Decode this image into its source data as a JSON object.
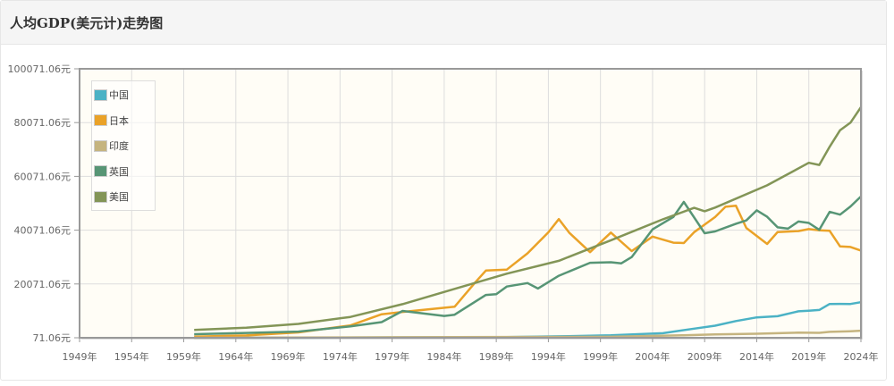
{
  "header": {
    "title": "人均GDP(美元计)走势图"
  },
  "chart_data": {
    "type": "line",
    "title": "人均GDP(美元计)走势图",
    "xlabel": "",
    "ylabel": "",
    "xlim": [
      1949,
      2024
    ],
    "ylim": [
      71.06,
      100071.06
    ],
    "x_ticks": [
      "1949年",
      "1954年",
      "1959年",
      "1964年",
      "1969年",
      "1974年",
      "1979年",
      "1984年",
      "1989年",
      "1994年",
      "1999年",
      "2004年",
      "2009年",
      "2014年",
      "2019年",
      "2024年"
    ],
    "y_ticks": [
      "71.06元",
      "20071.06元",
      "40071.06元",
      "60071.06元",
      "80071.06元",
      "100071.06元"
    ],
    "grid": true,
    "legend_position": "top-left",
    "series": [
      {
        "name": "中国",
        "color": "#4bb2c5",
        "x": [
          1960,
          1970,
          1980,
          1990,
          1995,
          2000,
          2005,
          2008,
          2010,
          2012,
          2014,
          2016,
          2018,
          2019,
          2020,
          2021,
          2022,
          2023,
          2024
        ],
        "values": [
          90,
          113,
          195,
          318,
          610,
          959,
          1753,
          3468,
          4550,
          6300,
          7636,
          8094,
          9905,
          10143,
          10409,
          12617,
          12663,
          12614,
          13300
        ]
      },
      {
        "name": "日本",
        "color": "#eaa228",
        "x": [
          1960,
          1965,
          1970,
          1975,
          1978,
          1980,
          1985,
          1987,
          1988,
          1990,
          1992,
          1994,
          1995,
          1996,
          1998,
          2000,
          2002,
          2004,
          2006,
          2007,
          2008,
          2010,
          2011,
          2012,
          2013,
          2015,
          2016,
          2018,
          2019,
          2020,
          2021,
          2022,
          2023,
          2024
        ],
        "values": [
          480,
          920,
          2056,
          4659,
          8821,
          9659,
          11585,
          20749,
          25051,
          25371,
          31465,
          39269,
          44198,
          39150,
          31902,
          39169,
          32281,
          37689,
          35434,
          35275,
          39339,
          44968,
          48760,
          49145,
          40898,
          34961,
          39375,
          39727,
          40458,
          40041,
          39827,
          34017,
          33834,
          32500
        ]
      },
      {
        "name": "印度",
        "color": "#c5b47f",
        "x": [
          1960,
          1980,
          1990,
          2000,
          2007,
          2010,
          2014,
          2018,
          2020,
          2021,
          2023,
          2024
        ],
        "values": [
          83,
          270,
          368,
          443,
          1000,
          1350,
          1560,
          1974,
          1913,
          2250,
          2480,
          2700
        ]
      },
      {
        "name": "英国",
        "color": "#579575",
        "x": [
          1960,
          1965,
          1970,
          1975,
          1978,
          1980,
          1984,
          1985,
          1988,
          1989,
          1990,
          1992,
          1993,
          1995,
          1998,
          2000,
          2001,
          2002,
          2004,
          2006,
          2007,
          2009,
          2010,
          2012,
          2013,
          2014,
          2015,
          2016,
          2017,
          2018,
          2019,
          2020,
          2021,
          2022,
          2023,
          2024
        ],
        "values": [
          1398,
          1874,
          2348,
          4300,
          5900,
          10032,
          8179,
          8652,
          15987,
          16239,
          19095,
          20400,
          18389,
          23123,
          27934,
          28150,
          27744,
          30057,
          40380,
          45000,
          50566,
          38952,
          39599,
          42463,
          43700,
          47440,
          45071,
          41147,
          40622,
          43306,
          42747,
          40217,
          46870,
          45850,
          48867,
          52600
        ]
      },
      {
        "name": "美国",
        "color": "#839557",
        "x": [
          1960,
          1965,
          1970,
          1975,
          1980,
          1985,
          1990,
          1995,
          2000,
          2005,
          2008,
          2009,
          2010,
          2015,
          2019,
          2020,
          2021,
          2022,
          2023,
          2024
        ],
        "values": [
          3007,
          3828,
          5234,
          7801,
          12575,
          18237,
          23889,
          28691,
          36330,
          44123,
          48383,
          47100,
          48467,
          56763,
          65120,
          64317,
          71056,
          77246,
          80035,
          85800
        ]
      }
    ]
  }
}
